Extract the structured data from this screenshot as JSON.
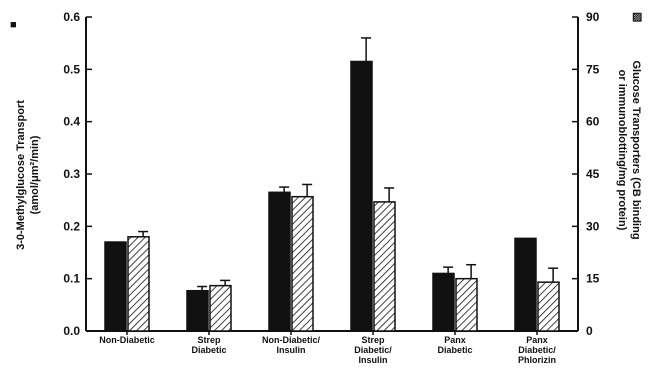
{
  "chart_data": {
    "type": "bar",
    "categories": [
      [
        "Non-Diabetic"
      ],
      [
        "Strep",
        "Diabetic"
      ],
      [
        "Non-Diabetic/",
        "Insulin"
      ],
      [
        "Strep",
        "Diabetic/",
        "Insulin"
      ],
      [
        "Panx",
        "Diabetic"
      ],
      [
        "Panx",
        "Diabetic/",
        "Phlorizin"
      ]
    ],
    "series": [
      {
        "key": "transport",
        "axis": "left",
        "fill": "solid",
        "values": [
          0.17,
          0.077,
          0.265,
          0.515,
          0.11,
          0.177
        ],
        "errors": [
          0.0,
          0.008,
          0.01,
          0.045,
          0.012,
          0.0
        ]
      },
      {
        "key": "transporters",
        "axis": "right",
        "fill": "hatched",
        "values": [
          27,
          13,
          38.5,
          37,
          15,
          14
        ],
        "errors": [
          1.5,
          1.5,
          3.5,
          4,
          4,
          4
        ]
      }
    ],
    "y_left": {
      "label_lines": [
        "3-0-Methylglucose Transport",
        "(amol/μm²/min)"
      ],
      "ylim": [
        0,
        0.6
      ],
      "ticks": [
        "0.0",
        "0.1",
        "0.2",
        "0.3",
        "0.4",
        "0.5",
        "0.6"
      ],
      "legend_marker": "■"
    },
    "y_right": {
      "label_lines": [
        "Glucose Transporters (CB binding",
        "or immunoblotting/mg protein)"
      ],
      "ylim": [
        0,
        90
      ],
      "ticks": [
        "0",
        "15",
        "30",
        "45",
        "60",
        "75",
        "90"
      ],
      "legend_marker": "▨"
    },
    "grid": false
  },
  "colors": {
    "ink": "#111111",
    "background": "#ffffff"
  }
}
